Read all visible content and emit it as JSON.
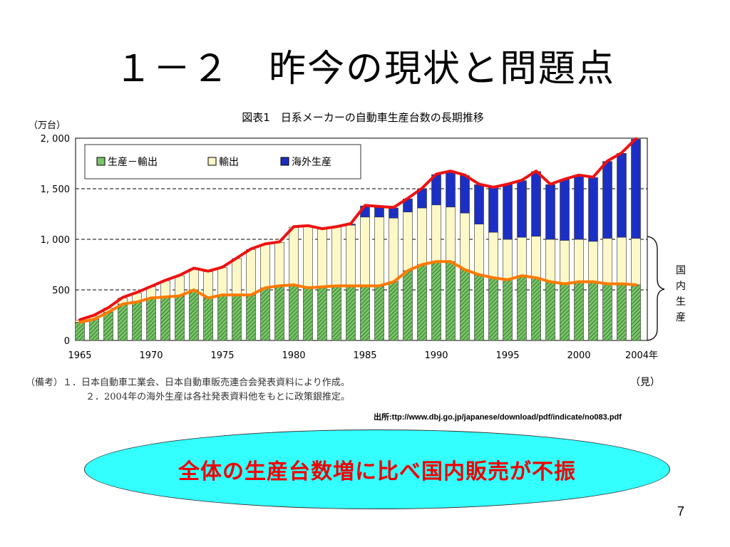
{
  "slide": {
    "title": "１－２　昨今の現状と問題点",
    "callout": "全体の生産台数増に比べ国内販売が不振",
    "source": "出所:ttp://www.dbj.go.jp/japanese/download/pdf/indicate/no083.pdf",
    "page_number": "7",
    "notes": [
      "（備考）１．日本自動車工業会、日本自動車販売連合会発表資料により作成。",
      "２．2004年の海外生産は各社発表資料他をもとに政策銀推定。"
    ],
    "estimate_mark": "（見）",
    "domestic_bracket_label": "国内生産"
  },
  "colors": {
    "domestic_minus_export": "#7cc46a",
    "export": "#fdf8c8",
    "overseas": "#1c2fc4",
    "total_line": "#ee1111",
    "domestic_sales_line": "#ff7a00",
    "callout_fill": "#33ffff",
    "callout_text": "#ee0000"
  },
  "chart_data": {
    "type": "bar",
    "stacked": true,
    "title": "図表1　日系メーカーの自動車生産台数の長期推移",
    "ylabel": "（万台）",
    "ylim": [
      0,
      2000
    ],
    "yticks": [
      0,
      500,
      1000,
      1500,
      2000
    ],
    "ytick_labels": [
      "0",
      "500",
      "1, 000",
      "1, 500",
      "2, 000"
    ],
    "xtick_labels": [
      "1965",
      "1970",
      "1975",
      "1980",
      "1985",
      "1990",
      "1995",
      "2000",
      "2004年"
    ],
    "grid": "dashed horizontal at 500, 1000, 1500",
    "legend_position": "top-left",
    "categories": [
      "1965",
      "1966",
      "1967",
      "1968",
      "1969",
      "1970",
      "1971",
      "1972",
      "1973",
      "1974",
      "1975",
      "1976",
      "1977",
      "1978",
      "1979",
      "1980",
      "1981",
      "1982",
      "1983",
      "1984",
      "1985",
      "1986",
      "1987",
      "1988",
      "1989",
      "1990",
      "1991",
      "1992",
      "1993",
      "1994",
      "1995",
      "1996",
      "1997",
      "1998",
      "1999",
      "2000",
      "2001",
      "2002",
      "2003",
      "2004"
    ],
    "series": [
      {
        "name": "生産－輸出",
        "values": [
          180,
          210,
          280,
          360,
          380,
          420,
          430,
          440,
          500,
          420,
          450,
          450,
          450,
          520,
          540,
          550,
          520,
          530,
          540,
          540,
          540,
          540,
          580,
          690,
          750,
          780,
          780,
          700,
          650,
          620,
          600,
          640,
          620,
          580,
          560,
          580,
          580,
          560,
          560,
          550
        ]
      },
      {
        "name": "輸出",
        "values": [
          20,
          30,
          40,
          60,
          90,
          110,
          160,
          200,
          210,
          260,
          270,
          360,
          450,
          430,
          430,
          570,
          610,
          570,
          580,
          600,
          680,
          680,
          630,
          580,
          560,
          560,
          540,
          560,
          500,
          450,
          400,
          380,
          410,
          420,
          430,
          420,
          400,
          450,
          460,
          460
        ]
      },
      {
        "name": "海外生産",
        "values": [
          0,
          0,
          0,
          0,
          0,
          0,
          0,
          0,
          0,
          0,
          0,
          0,
          0,
          0,
          0,
          0,
          0,
          0,
          0,
          10,
          110,
          100,
          100,
          130,
          190,
          300,
          350,
          370,
          390,
          440,
          540,
          560,
          640,
          540,
          600,
          630,
          630,
          760,
          830,
          980
        ]
      }
    ],
    "lines": [
      {
        "values": [
          205,
          250,
          325,
          425,
          475,
          535,
          595,
          645,
          715,
          685,
          725,
          815,
          905,
          955,
          975,
          1125,
          1135,
          1105,
          1125,
          1155,
          1335,
          1325,
          1315,
          1405,
          1505,
          1645,
          1675,
          1635,
          1545,
          1515,
          1545,
          1585,
          1675,
          1545,
          1595,
          1635,
          1615,
          1775,
          1855,
          1995
        ]
      },
      {
        "values": [
          180,
          210,
          280,
          360,
          380,
          420,
          430,
          440,
          500,
          420,
          450,
          450,
          450,
          520,
          540,
          550,
          520,
          530,
          540,
          540,
          540,
          540,
          580,
          690,
          750,
          780,
          780,
          700,
          650,
          620,
          600,
          640,
          620,
          580,
          560,
          580,
          580,
          560,
          560,
          550
        ]
      }
    ]
  }
}
